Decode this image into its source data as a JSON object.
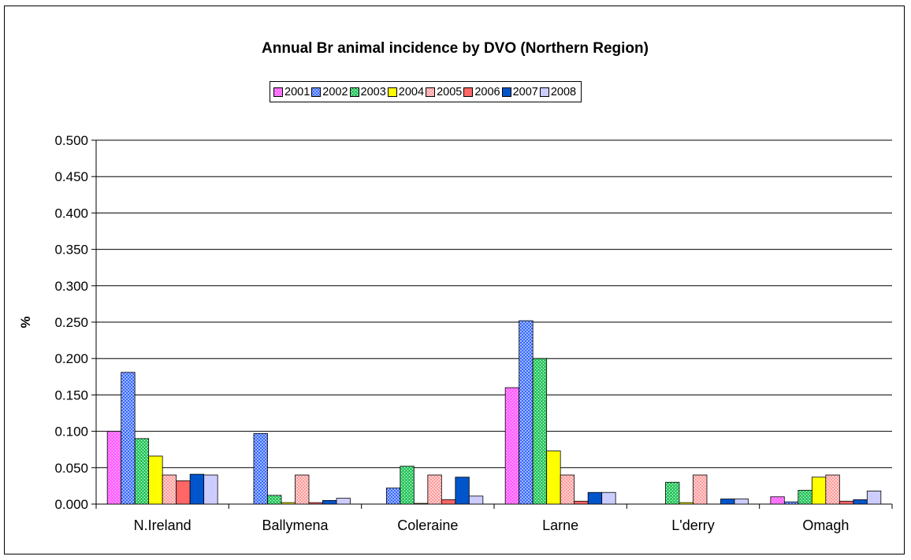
{
  "chart_data": {
    "type": "bar",
    "title": "Annual Br animal incidence by DVO (Northern Region)",
    "xlabel": "",
    "ylabel": "%",
    "ylim": [
      0,
      0.5
    ],
    "yticks": [
      "0.000",
      "0.050",
      "0.100",
      "0.150",
      "0.200",
      "0.250",
      "0.300",
      "0.350",
      "0.400",
      "0.450",
      "0.500"
    ],
    "grid": true,
    "legend_position": "top",
    "categories": [
      "N.Ireland",
      "Ballymena",
      "Coleraine",
      "Larne",
      "L'derry",
      "Omagh"
    ],
    "series": [
      {
        "name": "2001",
        "color": "#ff66ff",
        "pattern": "fine-dots",
        "values": [
          0.1,
          0.0,
          0.0,
          0.16,
          0.0,
          0.01
        ]
      },
      {
        "name": "2002",
        "color": "#3366ff",
        "pattern": "checker",
        "values": [
          0.181,
          0.097,
          0.022,
          0.252,
          0.0,
          0.003
        ]
      },
      {
        "name": "2003",
        "color": "#33cc66",
        "pattern": "dots",
        "values": [
          0.09,
          0.012,
          0.052,
          0.2,
          0.03,
          0.019
        ]
      },
      {
        "name": "2004",
        "color": "#ffff00",
        "pattern": "solid",
        "values": [
          0.066,
          0.002,
          0.001,
          0.073,
          0.002,
          0.037
        ]
      },
      {
        "name": "2005",
        "color": "#ff9999",
        "pattern": "checker",
        "values": [
          0.04,
          0.04,
          0.04,
          0.04,
          0.04,
          0.04
        ]
      },
      {
        "name": "2006",
        "color": "#ff6666",
        "pattern": "solid",
        "values": [
          0.032,
          0.002,
          0.006,
          0.004,
          0.0,
          0.004
        ]
      },
      {
        "name": "2007",
        "color": "#0055cc",
        "pattern": "solid",
        "values": [
          0.041,
          0.005,
          0.037,
          0.016,
          0.007,
          0.006
        ]
      },
      {
        "name": "2008",
        "color": "#ccccff",
        "pattern": "solid",
        "values": [
          0.04,
          0.008,
          0.011,
          0.016,
          0.007,
          0.018
        ]
      }
    ]
  }
}
